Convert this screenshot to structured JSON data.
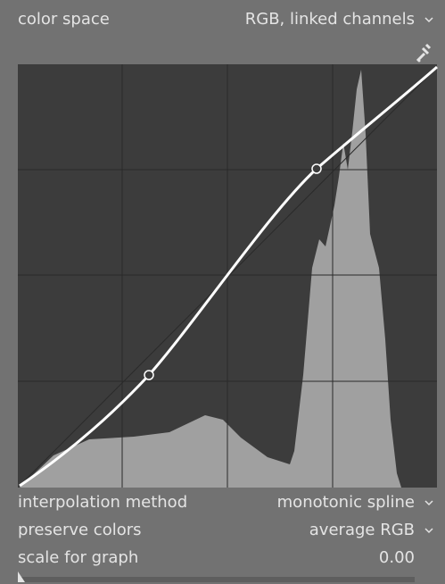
{
  "color_space": {
    "label": "color space",
    "value": "RGB, linked channels"
  },
  "interpolation_method": {
    "label": "interpolation method",
    "value": "monotonic spline"
  },
  "preserve_colors": {
    "label": "preserve colors",
    "value": "average RGB"
  },
  "scale_for_graph": {
    "label": "scale for graph",
    "value": "0.00"
  }
}
